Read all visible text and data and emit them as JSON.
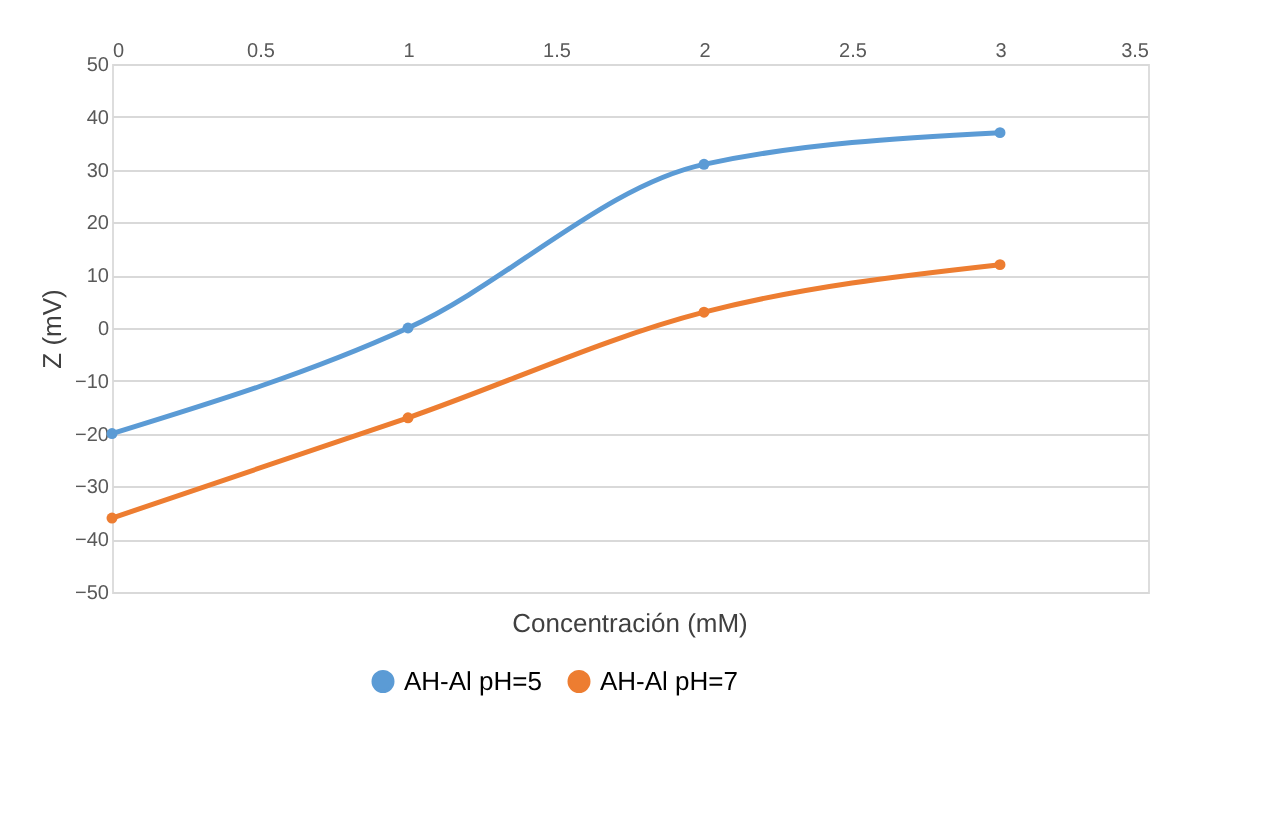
{
  "chart_data": {
    "type": "line",
    "xlabel": "Concentración (mM)",
    "ylabel": "Z (mV)",
    "x": [
      0,
      1,
      2,
      3
    ],
    "series": [
      {
        "name": "AH-Al pH=5",
        "color": "#5b9bd5",
        "values": [
          -20,
          0,
          31,
          37
        ]
      },
      {
        "name": "AH-Al pH=7",
        "color": "#ed7d31",
        "values": [
          -36,
          -17,
          3,
          12
        ]
      }
    ],
    "xlim": [
      0,
      3.5
    ],
    "xticks": [
      0,
      0.5,
      1,
      1.5,
      2,
      2.5,
      3,
      3.5
    ],
    "ylim": [
      -50,
      50
    ],
    "yticks": [
      -50,
      -40,
      -30,
      -20,
      -10,
      0,
      10,
      20,
      30,
      40,
      50
    ],
    "grid": "y",
    "legend": "bottom",
    "marker": "circle",
    "line_style": "solid"
  }
}
